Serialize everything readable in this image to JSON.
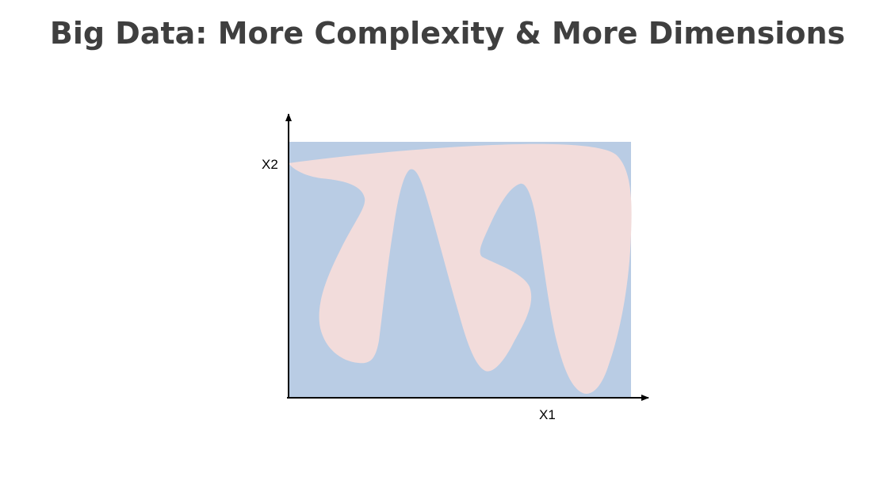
{
  "slide": {
    "title": "Big Data: More Complexity & More Dimensions"
  },
  "diagram": {
    "x_axis_label": "X1",
    "y_axis_label": "X2",
    "colors": {
      "background_region": "#b9cce4",
      "shape_region": "#f2dcdb",
      "axis": "#000000",
      "title": "#3f3f3f"
    }
  }
}
